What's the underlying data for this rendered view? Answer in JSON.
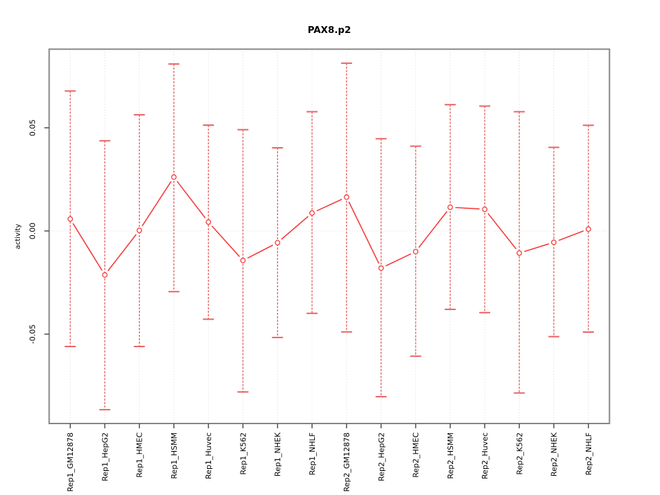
{
  "chart_data": {
    "type": "line",
    "title": "PAX8.p2",
    "xlabel": "",
    "ylabel": "activity",
    "legend": "none",
    "grid": "vertical dotted gridline per category plus dotted horizontal line at y=0",
    "marker": "open-circle",
    "categories": [
      "Rep1_GM12878",
      "Rep1_HepG2",
      "Rep1_HMEC",
      "Rep1_HSMM",
      "Rep1_Huvec",
      "Rep1_K562",
      "Rep1_NHEK",
      "Rep1_NHLF",
      "Rep2_GM12878",
      "Rep2_HepG2",
      "Rep2_HMEC",
      "Rep2_HSMM",
      "Rep2_Huvec",
      "Rep2_K562",
      "Rep2_NHEK",
      "Rep2_NHLF"
    ],
    "series": [
      {
        "name": "activity",
        "values": [
          0.0058,
          -0.0213,
          0.0003,
          0.0261,
          0.0043,
          -0.0143,
          -0.0057,
          0.0087,
          0.0164,
          -0.018,
          -0.01,
          0.0115,
          0.0105,
          -0.0107,
          -0.0055,
          0.0009
        ],
        "error_upper": [
          0.0678,
          0.0437,
          0.0563,
          0.0809,
          0.0513,
          0.0491,
          0.0403,
          0.0578,
          0.0813,
          0.0447,
          0.0411,
          0.0612,
          0.0605,
          0.0578,
          0.0405,
          0.0512
        ],
        "error_lower": [
          -0.056,
          -0.0866,
          -0.056,
          -0.0294,
          -0.0428,
          -0.078,
          -0.0516,
          -0.0399,
          -0.0489,
          -0.0803,
          -0.0607,
          -0.038,
          -0.0396,
          -0.0785,
          -0.0512,
          -0.049
        ]
      }
    ],
    "ylim": [
      -0.0933,
      0.0881
    ],
    "yticks": [
      {
        "value": 0.05,
        "label": "0.05"
      },
      {
        "value": 0.0,
        "label": "0.00"
      },
      {
        "value": -0.05,
        "label": "-0.05"
      }
    ],
    "colors": {
      "series_line": "#f43b3b",
      "marker_stroke": "#f43b3b",
      "marker_fill": "#ffffff",
      "error_bar": "#e96363",
      "grid": "#d4d4d4",
      "box": "#848484",
      "tick": "#4d4d4d",
      "text": "#000000",
      "background": "#ffffff"
    }
  }
}
